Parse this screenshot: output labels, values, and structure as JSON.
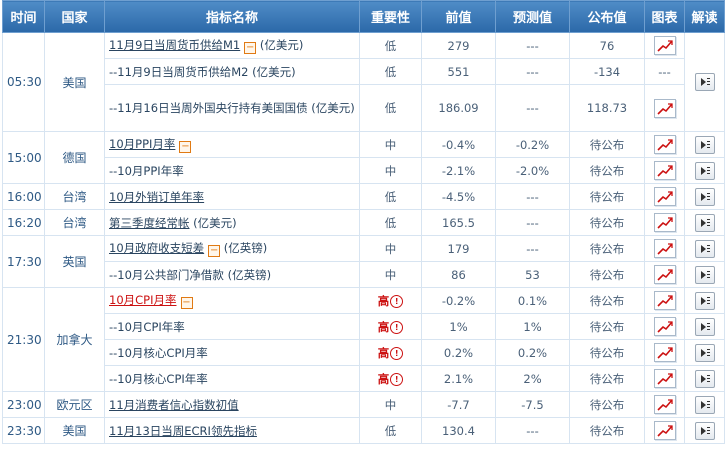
{
  "headers": {
    "time": "时间",
    "country": "国家",
    "indicator": "指标名称",
    "importance": "重要性",
    "previous": "前值",
    "forecast": "预测值",
    "actual": "公布值",
    "chart": "图表",
    "analysis": "解读"
  },
  "rows": [
    {
      "time": "05:30",
      "country": "美国",
      "indicator": "11月9日当周货币供给M1",
      "suffix": "(亿美元)",
      "importance": "低",
      "previous": "279",
      "forecast": "---",
      "actual": "76"
    },
    {
      "indicator": "--11月9日当周货币供给M2 (亿美元)",
      "importance": "低",
      "previous": "551",
      "forecast": "---",
      "actual": "-134",
      "chart": "---"
    },
    {
      "indicator": "--11月16日当周外国央行持有美国国债 (亿美元)",
      "importance": "低",
      "previous": "186.09",
      "forecast": "---",
      "actual": "118.73"
    },
    {
      "time": "15:00",
      "country": "德国",
      "indicator": "10月PPI月率",
      "importance": "中",
      "previous": "-0.4%",
      "forecast": "-0.2%",
      "actual": "待公布"
    },
    {
      "indicator": "--10月PPI年率",
      "importance": "中",
      "previous": "-2.1%",
      "forecast": "-2.0%",
      "actual": "待公布"
    },
    {
      "time": "16:00",
      "country": "台湾",
      "indicator": "10月外销订单年率",
      "importance": "低",
      "previous": "-4.5%",
      "forecast": "---",
      "actual": "待公布"
    },
    {
      "time": "16:20",
      "country": "台湾",
      "indicator": "第三季度经常帐",
      "suffix": "(亿美元)",
      "importance": "低",
      "previous": "165.5",
      "forecast": "---",
      "actual": "待公布"
    },
    {
      "time": "17:30",
      "country": "英国",
      "indicator": "10月政府收支短差",
      "suffix": "(亿英镑)",
      "importance": "中",
      "previous": "179",
      "forecast": "---",
      "actual": "待公布"
    },
    {
      "indicator": "--10月公共部门净借款 (亿英镑)",
      "importance": "中",
      "previous": "86",
      "forecast": "53",
      "actual": "待公布"
    },
    {
      "time": "21:30",
      "country": "加拿大",
      "indicator": "10月CPI月率",
      "importance": "高",
      "previous": "-0.2%",
      "forecast": "0.1%",
      "actual": "待公布"
    },
    {
      "indicator": "--10月CPI年率",
      "importance": "高",
      "previous": "1%",
      "forecast": "1%",
      "actual": "待公布"
    },
    {
      "indicator": "--10月核心CPI月率",
      "importance": "高",
      "previous": "0.2%",
      "forecast": "0.2%",
      "actual": "待公布"
    },
    {
      "indicator": "--10月核心CPI年率",
      "importance": "高",
      "previous": "2.1%",
      "forecast": "2%",
      "actual": "待公布"
    },
    {
      "time": "23:00",
      "country": "欧元区",
      "indicator": "11月消费者信心指数初值",
      "importance": "中",
      "previous": "-7.7",
      "forecast": "-7.5",
      "actual": "待公布"
    },
    {
      "time": "23:30",
      "country": "美国",
      "indicator": "11月13日当周ECRI领先指标",
      "importance": "低",
      "previous": "130.4",
      "forecast": "---",
      "actual": "待公布"
    }
  ],
  "colors": {
    "header": "#2b68a8",
    "low": "#2c9c2c",
    "high": "#cc1111",
    "link_red": "#cc1111",
    "expand": "#e07a14"
  }
}
